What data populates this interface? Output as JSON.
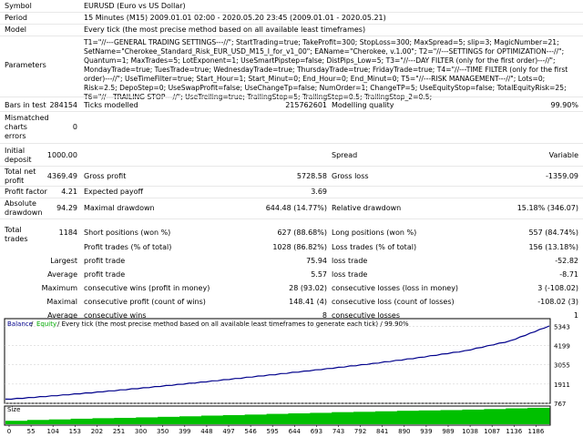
{
  "rows": {
    "symbol": {
      "label": "Symbol",
      "value": "EURUSD (Euro vs US Dollar)"
    },
    "period": {
      "label": "Period",
      "value": "15 Minutes (M15) 2009.01.01 02:00 - 2020.05.20 23:45 (2009.01.01 - 2020.05.21)"
    },
    "model": {
      "label": "Model",
      "value": "Every tick (the most precise method based on all available least timeframes)"
    },
    "parameters": {
      "label": "Parameters",
      "value": "T1=\"//---GENERAL TRADING SETTINGS---//\"; StartTrading=true; TakeProfit=300; StopLoss=300; MaxSpread=5; slip=3; MagicNumber=21; SetName=\"Cherokee_Standard_Risk_EUR_USD_M15_I_for_v1_00\"; EAName=\"Cherokee, v.1.00\"; T2=\"//---SETTINGS for OPTIMIZATION---//\"; Quantum=1; MaxTrades=5; LotExponent=1; UseSmartPipstep=false; DistPips_Low=5; T3=\"//---DAY FILTER (only for the first order)---//\"; MondayTrade=true; TuesTrade=true; WednesdayTrade=true; ThursdayTrade=true; FridayTrade=true; T4=\"//---TIME FILTER (only for the first order)---//\"; UseTimeFilter=true; Start_Hour=1; Start_Minut=0; End_Hour=0; End_Minut=0; T5=\"//---RISK MANAGEMENT---//\"; Lots=0; Risk=2.5; DepoStep=0; UseSwapProfit=false; UseChangeTp=false; NumOrder=1; ChangeTP=5; UseEquityStop=false; TotalEquityRisk=25; T6=\"//---TRAILING STOP---//\"; UseTreiling=true; TrailingStop=5; TrailingStep=0.5; TrailingStop_2=0.5;"
    }
  },
  "stats": {
    "bars_label": "Bars in test",
    "bars_value": "284154",
    "ticks_label": "Ticks modelled",
    "ticks_value": "215762601",
    "quality_label": "Modelling quality",
    "quality_value": "99.90%",
    "mismatched_label_1": "Mismatched",
    "mismatched_label_2": "charts",
    "mismatched_label_3": "errors",
    "mismatched_value": "0",
    "initial_label_1": "Initial",
    "initial_label_2": "deposit",
    "initial_value": "1000.00",
    "spread_label": "Spread",
    "spread_value": "Variable",
    "netprofit_label_1": "Total net",
    "netprofit_label_2": "profit",
    "netprofit_value": "4369.49",
    "grossprofit_label": "Gross profit",
    "grossprofit_value": "5728.58",
    "grossloss_label": "Gross loss",
    "grossloss_value": "-1359.09",
    "pf_label": "Profit factor",
    "pf_value": "4.21",
    "payoff_label": "Expected payoff",
    "payoff_value": "3.69",
    "absdd_label_1": "Absolute",
    "absdd_label_2": "drawdown",
    "absdd_value": "94.29",
    "maxdd_label": "Maximal drawdown",
    "maxdd_value": "644.48 (14.77%)",
    "reldd_label": "Relative drawdown",
    "reldd_value": "15.18% (346.07)",
    "trades_label_1": "Total",
    "trades_label_2": "trades",
    "trades_value": "1184",
    "short_label": "Short positions (won %)",
    "short_value": "627 (88.68%)",
    "long_label": "Long positions (won %)",
    "long_value": "557 (84.74%)",
    "profit_trades_label": "Profit trades (% of total)",
    "profit_trades_value": "1028 (86.82%)",
    "loss_trades_label": "Loss trades (% of total)",
    "loss_trades_value": "156 (13.18%)",
    "largest_label": "Largest",
    "largest_profit_label": "profit trade",
    "largest_profit_value": "75.94",
    "largest_loss_label": "loss trade",
    "largest_loss_value": "-52.82",
    "average_label": "Average",
    "average_profit_label": "profit trade",
    "average_profit_value": "5.57",
    "average_loss_label": "loss trade",
    "average_loss_value": "-8.71",
    "maximum_label": "Maximum",
    "max_wins_label": "consecutive wins (profit in money)",
    "max_wins_value": "28 (93.02)",
    "max_losses_label": "consecutive losses (loss in money)",
    "max_losses_value": "3 (-108.02)",
    "maximal_label": "Maximal",
    "maximal_wins_label": "consecutive profit (count of wins)",
    "maximal_wins_value": "148.41 (4)",
    "maximal_losses_label": "consecutive loss (count of losses)",
    "maximal_losses_value": "-108.02 (3)",
    "average2_label": "Average",
    "avg_wins_label": "consecutive wins",
    "avg_wins_value": "8",
    "avg_losses_label": "consecutive losses",
    "avg_losses_value": "1"
  },
  "chart_data": {
    "type": "line",
    "legend": {
      "balance": "Balance",
      "slash": "/",
      "equity": "Equity",
      "rest": "/ Every tick (the most precise method based on all available least timeframes to generate each tick) / 99.90%"
    },
    "x": [
      0,
      100,
      200,
      300,
      400,
      500,
      600,
      700,
      800,
      900,
      1000,
      1100,
      1184
    ],
    "series": [
      {
        "name": "Balance",
        "values": [
          1000,
          1200,
          1430,
          1680,
          1950,
          2230,
          2520,
          2820,
          3130,
          3480,
          3880,
          4480,
          5369
        ]
      }
    ],
    "y_ticks": [
      "5343",
      "4199",
      "3055",
      "1911",
      "767"
    ],
    "ylim": [
      767,
      5800
    ],
    "size_label": "Size",
    "x_ticks": [
      "0",
      "55",
      "104",
      "153",
      "202",
      "251",
      "300",
      "350",
      "399",
      "448",
      "497",
      "546",
      "595",
      "644",
      "693",
      "743",
      "792",
      "841",
      "890",
      "939",
      "989",
      "1038",
      "1087",
      "1136",
      "1186"
    ],
    "size_values": [
      0.2,
      0.25,
      0.28,
      0.32,
      0.35,
      0.37,
      0.4,
      0.43,
      0.46,
      0.5,
      0.53,
      0.56,
      0.6,
      0.63,
      0.66,
      0.7,
      0.72,
      0.75,
      0.78,
      0.8,
      0.82,
      0.85,
      0.88,
      0.92,
      0.95
    ],
    "colors": {
      "balance": "#00008b",
      "equity": "#00aa00",
      "size": "#00c000",
      "axis": "#000000",
      "grid": "#c8c8c8"
    }
  }
}
